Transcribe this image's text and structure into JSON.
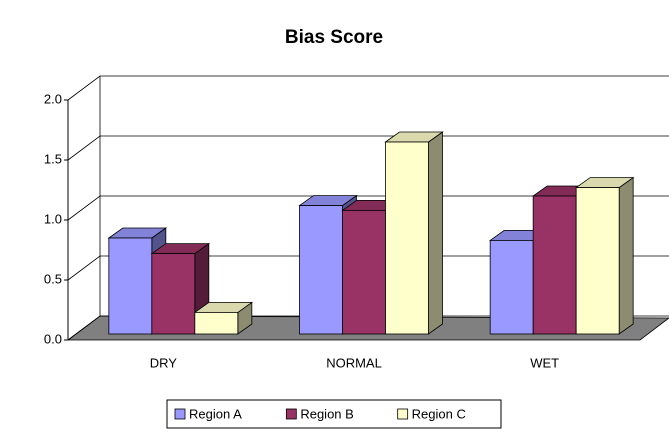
{
  "chart_data": {
    "type": "bar3d",
    "title": "Bias Score",
    "categories": [
      "DRY",
      "NORMAL",
      "WET"
    ],
    "series": [
      {
        "name": "Region A",
        "color": "#9999ff",
        "values": [
          0.8,
          1.07,
          0.78
        ]
      },
      {
        "name": "Region B",
        "color": "#993366",
        "values": [
          0.67,
          1.03,
          1.15
        ]
      },
      {
        "name": "Region C",
        "color": "#ffffcc",
        "values": [
          0.18,
          1.6,
          1.22
        ]
      }
    ],
    "ylim": [
      0,
      2
    ],
    "yticks": [
      {
        "value": 0,
        "label": "0.0"
      },
      0.5,
      {
        "value": 1,
        "label": "1.0"
      },
      1.5,
      {
        "value": 2,
        "label": "2.0"
      }
    ],
    "grid": true,
    "legend": "bottom"
  }
}
